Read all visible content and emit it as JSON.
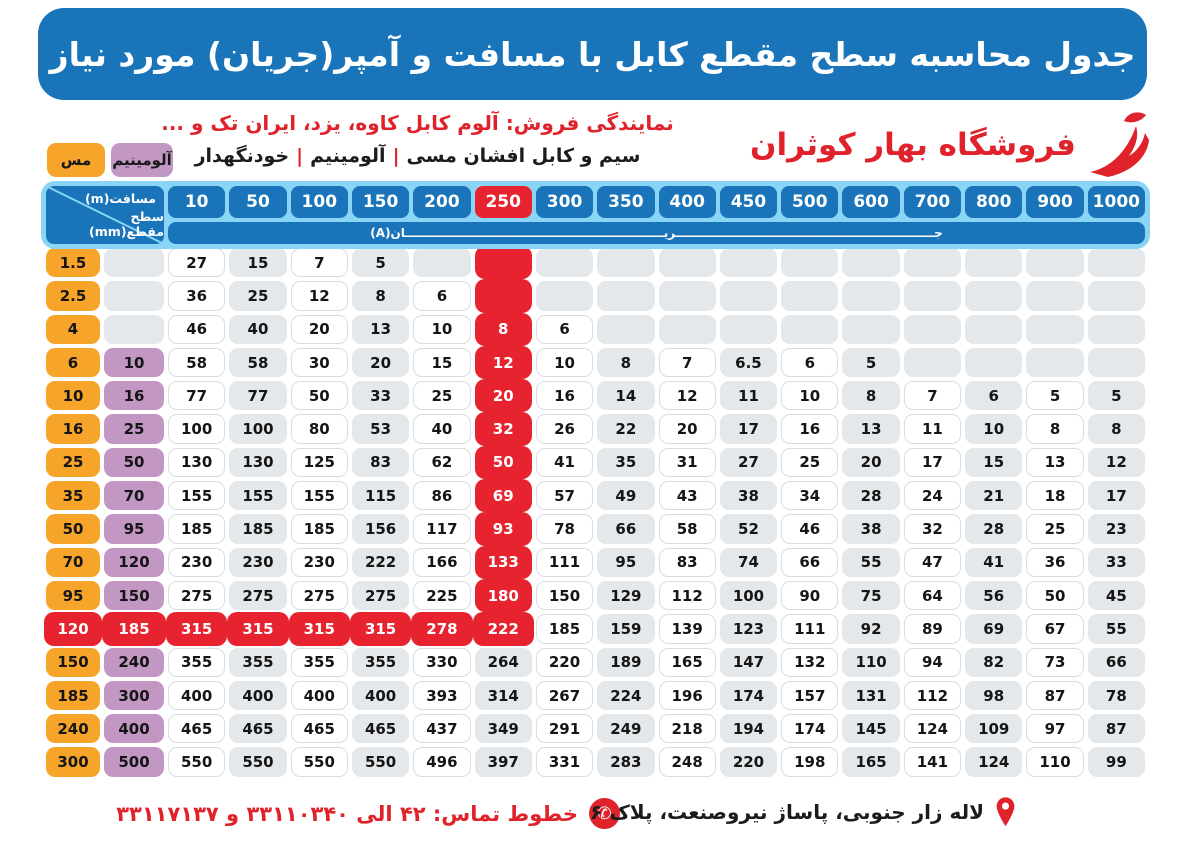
{
  "title": "جدول محاسبه سطح مقطع کابل با مسافت و آمپر(جریان) مورد نیاز",
  "store": {
    "name": "فروشگاه بهار کوثران"
  },
  "distributor_line": "نمایندگی فروش: آلوم کابل کاوه، یزد، ایران تک و ...",
  "products": {
    "items": [
      "سیم و کابل افشان مسی",
      "آلومینیم",
      "خودنگهدار"
    ],
    "separator": "|"
  },
  "legend": {
    "copper": "مس",
    "aluminum": "آلومینیم"
  },
  "table": {
    "corner_top_label": "مسافت(m)",
    "corner_bottom_label": "سطح مقطع(mm)",
    "current_band_label": "جـــــــــــــــــــــــــــــــــــــــــــــــــــــــــــــــریـــــــــــــــــــــــــــــــــــــــــــــــــــــــــــــــان(A)",
    "distances": [
      "10",
      "50",
      "100",
      "150",
      "200",
      "250",
      "300",
      "350",
      "400",
      "450",
      "500",
      "600",
      "700",
      "800",
      "900",
      "1000"
    ],
    "highlighted_distance_index": 5,
    "full_red_row_index": 11,
    "rows": [
      {
        "cu": "1.5",
        "al": "",
        "values": [
          "27",
          "15",
          "7",
          "5",
          "",
          "",
          "",
          "",
          "",
          "",
          "",
          "",
          "",
          "",
          "",
          ""
        ]
      },
      {
        "cu": "2.5",
        "al": "",
        "values": [
          "36",
          "25",
          "12",
          "8",
          "6",
          "",
          "",
          "",
          "",
          "",
          "",
          "",
          "",
          "",
          "",
          ""
        ]
      },
      {
        "cu": "4",
        "al": "",
        "values": [
          "46",
          "40",
          "20",
          "13",
          "10",
          "8",
          "6",
          "",
          "",
          "",
          "",
          "",
          "",
          "",
          "",
          ""
        ]
      },
      {
        "cu": "6",
        "al": "10",
        "values": [
          "58",
          "58",
          "30",
          "20",
          "15",
          "12",
          "10",
          "8",
          "7",
          "6.5",
          "6",
          "5",
          "",
          "",
          "",
          ""
        ]
      },
      {
        "cu": "10",
        "al": "16",
        "values": [
          "77",
          "77",
          "50",
          "33",
          "25",
          "20",
          "16",
          "14",
          "12",
          "11",
          "10",
          "8",
          "7",
          "6",
          "5",
          "5"
        ]
      },
      {
        "cu": "16",
        "al": "25",
        "values": [
          "100",
          "100",
          "80",
          "53",
          "40",
          "32",
          "26",
          "22",
          "20",
          "17",
          "16",
          "13",
          "11",
          "10",
          "8",
          "8"
        ]
      },
      {
        "cu": "25",
        "al": "50",
        "values": [
          "130",
          "130",
          "125",
          "83",
          "62",
          "50",
          "41",
          "35",
          "31",
          "27",
          "25",
          "20",
          "17",
          "15",
          "13",
          "12"
        ]
      },
      {
        "cu": "35",
        "al": "70",
        "values": [
          "155",
          "155",
          "155",
          "115",
          "86",
          "69",
          "57",
          "49",
          "43",
          "38",
          "34",
          "28",
          "24",
          "21",
          "18",
          "17"
        ]
      },
      {
        "cu": "50",
        "al": "95",
        "values": [
          "185",
          "185",
          "185",
          "156",
          "117",
          "93",
          "78",
          "66",
          "58",
          "52",
          "46",
          "38",
          "32",
          "28",
          "25",
          "23"
        ]
      },
      {
        "cu": "70",
        "al": "120",
        "values": [
          "230",
          "230",
          "230",
          "222",
          "166",
          "133",
          "111",
          "95",
          "83",
          "74",
          "66",
          "55",
          "47",
          "41",
          "36",
          "33"
        ]
      },
      {
        "cu": "95",
        "al": "150",
        "values": [
          "275",
          "275",
          "275",
          "275",
          "225",
          "180",
          "150",
          "129",
          "112",
          "100",
          "90",
          "75",
          "64",
          "56",
          "50",
          "45"
        ]
      },
      {
        "cu": "120",
        "al": "185",
        "values": [
          "315",
          "315",
          "315",
          "315",
          "278",
          "222",
          "185",
          "159",
          "139",
          "123",
          "111",
          "92",
          "89",
          "69",
          "67",
          "55"
        ]
      },
      {
        "cu": "150",
        "al": "240",
        "values": [
          "355",
          "355",
          "355",
          "355",
          "330",
          "264",
          "220",
          "189",
          "165",
          "147",
          "132",
          "110",
          "94",
          "82",
          "73",
          "66"
        ]
      },
      {
        "cu": "185",
        "al": "300",
        "values": [
          "400",
          "400",
          "400",
          "400",
          "393",
          "314",
          "267",
          "224",
          "196",
          "174",
          "157",
          "131",
          "112",
          "98",
          "87",
          "78"
        ]
      },
      {
        "cu": "240",
        "al": "400",
        "values": [
          "465",
          "465",
          "465",
          "465",
          "437",
          "349",
          "291",
          "249",
          "218",
          "194",
          "174",
          "145",
          "124",
          "109",
          "97",
          "87"
        ]
      },
      {
        "cu": "300",
        "al": "500",
        "values": [
          "550",
          "550",
          "550",
          "550",
          "496",
          "397",
          "331",
          "283",
          "248",
          "220",
          "198",
          "165",
          "141",
          "124",
          "110",
          "99"
        ]
      }
    ]
  },
  "footer": {
    "phone_label": "خطوط تماس: ۴۲ الی ۳۳۱۱۰۳۴۰ و ۳۳۱۱۷۱۳۷",
    "phone_icon": "phone",
    "address": "لاله زار جنوبی، پاساژ نیروصنعت، پلاک ۶",
    "address_icon": "location-pin"
  },
  "colors": {
    "blue": "#1a74ba",
    "light_blue": "#8ad5f6",
    "red": "#e7232f",
    "accent_red": "#e0232b",
    "orange": "#f6a42a",
    "purple": "#c397c4",
    "cell_gray": "#e4e8eb",
    "cell_border": "#d8dde0"
  }
}
